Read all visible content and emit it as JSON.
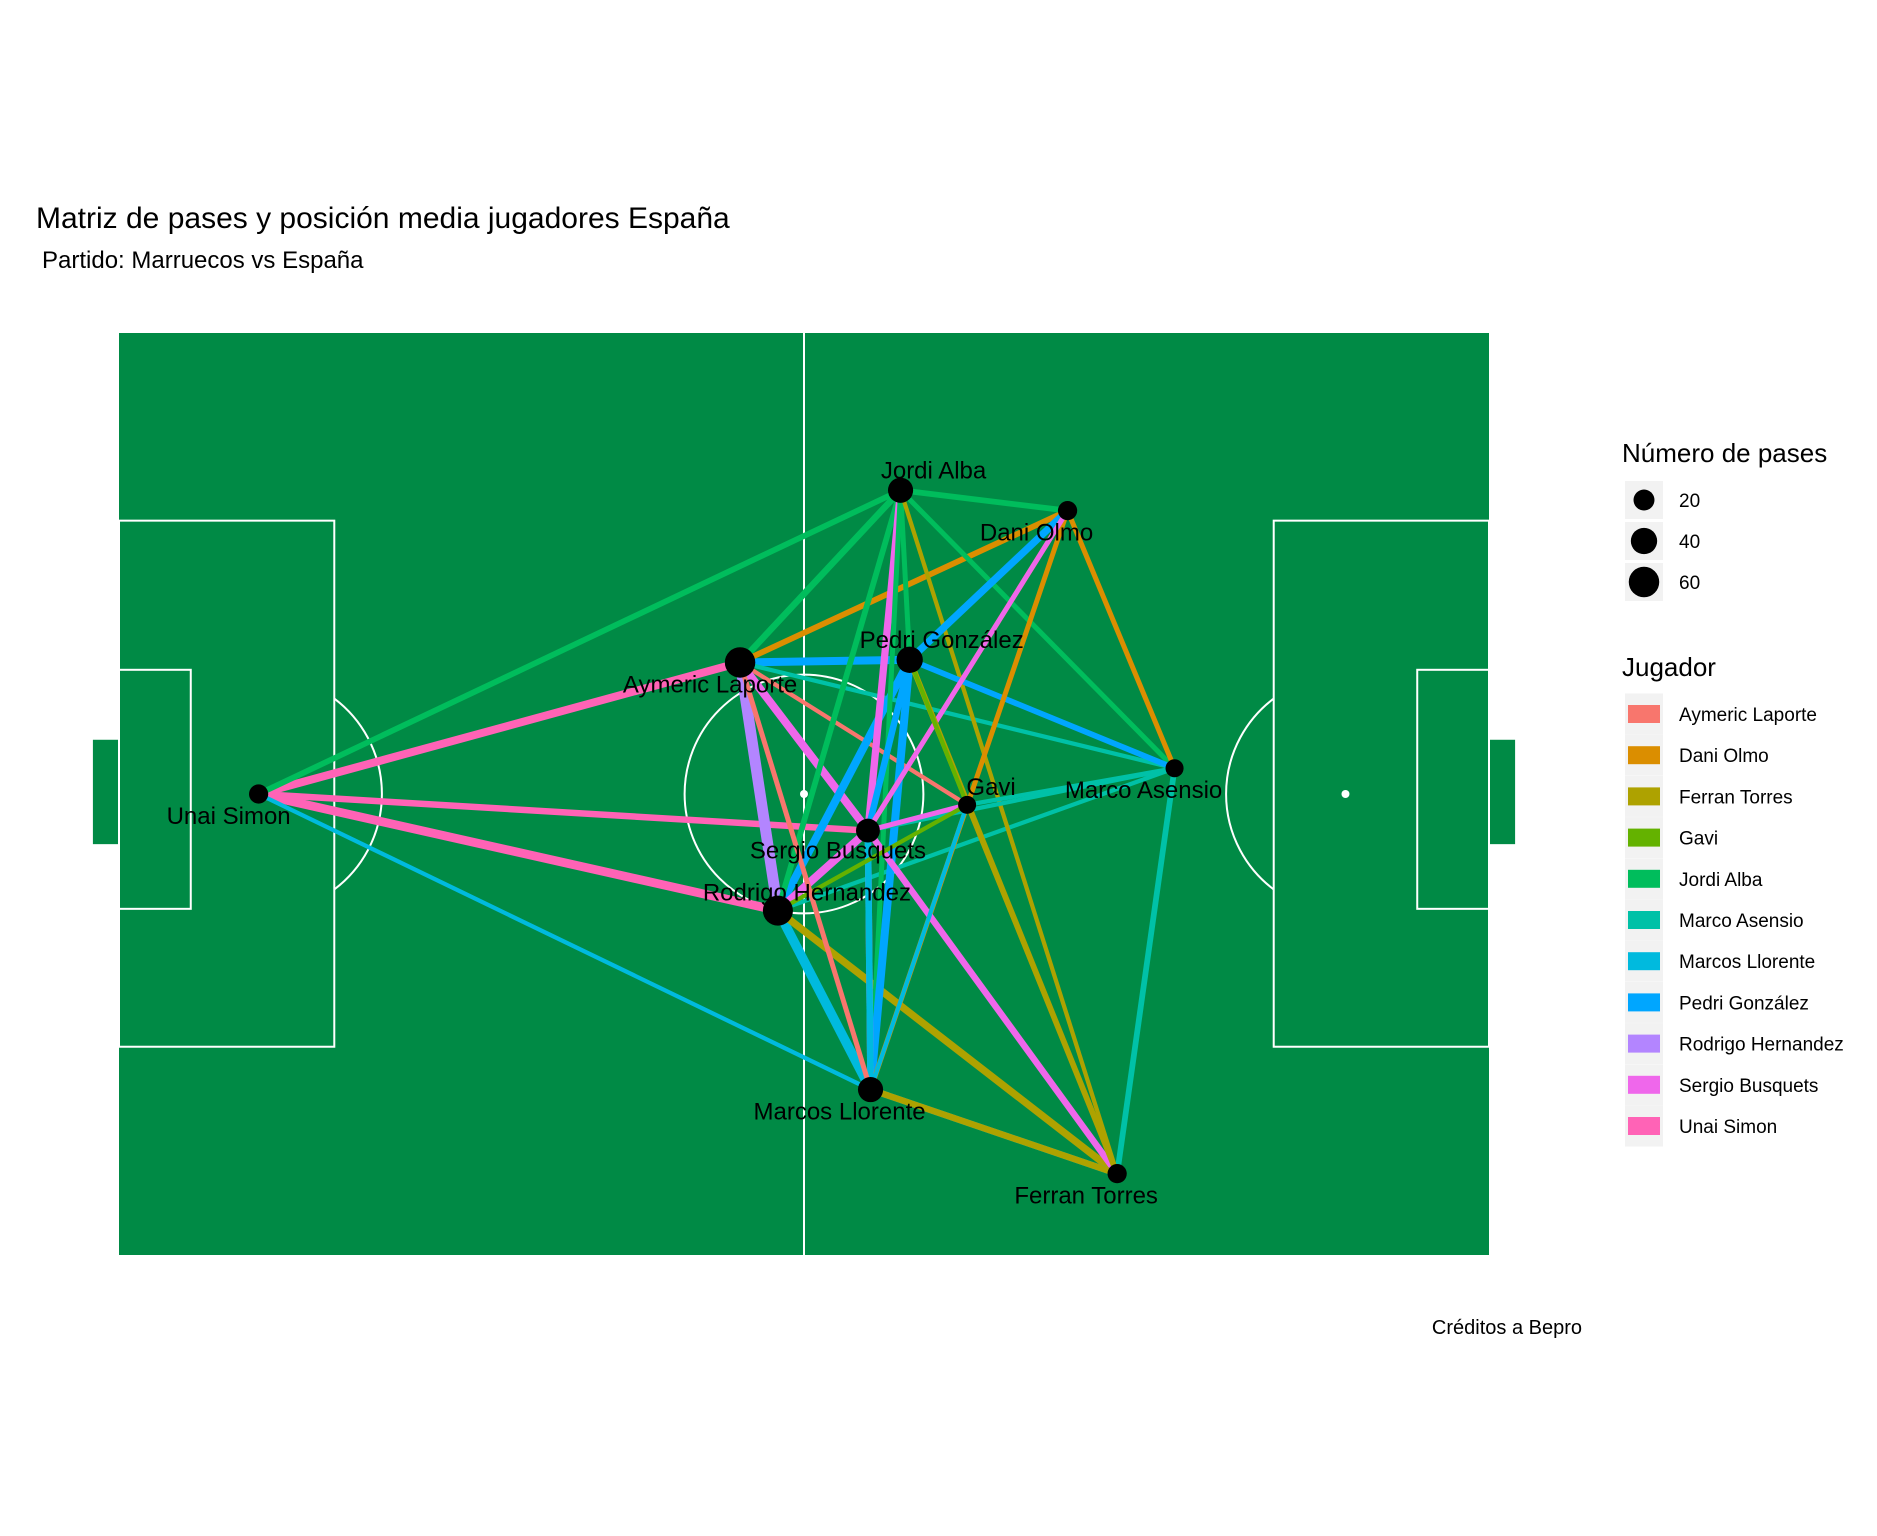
{
  "chart_data": {
    "type": "network",
    "title": "Matriz de pases y posición media jugadores España",
    "subtitle": "Partido: Marruecos vs España",
    "caption": "Créditos a Bepro",
    "pitch": {
      "length": 105,
      "width": 68,
      "color": "#008a45",
      "line_color": "#ffffff"
    },
    "size_legend": {
      "title": "Número de pases",
      "entries": [
        {
          "label": "20",
          "value": 20
        },
        {
          "label": "40",
          "value": 40
        },
        {
          "label": "60",
          "value": 60
        }
      ]
    },
    "color_legend": {
      "title": "Jugador",
      "entries": [
        {
          "name": "Aymeric Laporte",
          "color": "#f8766d"
        },
        {
          "name": "Dani Olmo",
          "color": "#db8e00"
        },
        {
          "name": "Ferran Torres",
          "color": "#aea200"
        },
        {
          "name": "Gavi",
          "color": "#64b200"
        },
        {
          "name": "Jordi Alba",
          "color": "#00bd5c"
        },
        {
          "name": "Marco Asensio",
          "color": "#00c1a7"
        },
        {
          "name": "Marcos Llorente",
          "color": "#00bade"
        },
        {
          "name": "Pedri González",
          "color": "#00a6ff"
        },
        {
          "name": "Rodrigo Hernandez",
          "color": "#b385ff"
        },
        {
          "name": "Sergio Busquets",
          "color": "#ef67eb"
        },
        {
          "name": "Unai Simon",
          "color": "#ff63b6"
        }
      ]
    },
    "players": [
      {
        "name": "Unai Simon",
        "x": 10.7,
        "y": 34.0,
        "passes": 15
      },
      {
        "name": "Aymeric Laporte",
        "x": 47.6,
        "y": 43.7,
        "passes": 60
      },
      {
        "name": "Rodrigo Hernandez",
        "x": 50.5,
        "y": 25.4,
        "passes": 58
      },
      {
        "name": "Sergio Busquets",
        "x": 57.4,
        "y": 31.3,
        "passes": 30
      },
      {
        "name": "Pedri González",
        "x": 60.6,
        "y": 43.9,
        "passes": 40
      },
      {
        "name": "Jordi Alba",
        "x": 59.9,
        "y": 56.4,
        "passes": 35
      },
      {
        "name": "Dani Olmo",
        "x": 72.7,
        "y": 54.9,
        "passes": 15
      },
      {
        "name": "Gavi",
        "x": 65.0,
        "y": 33.2,
        "passes": 12
      },
      {
        "name": "Marco Asensio",
        "x": 80.9,
        "y": 35.9,
        "passes": 12
      },
      {
        "name": "Marcos Llorente",
        "x": 57.6,
        "y": 12.2,
        "passes": 35
      },
      {
        "name": "Ferran Torres",
        "x": 76.5,
        "y": 6.0,
        "passes": 15
      }
    ],
    "passes": [
      {
        "from": "Unai Simon",
        "to": "Aymeric Laporte",
        "count": 8
      },
      {
        "from": "Unai Simon",
        "to": "Rodrigo Hernandez",
        "count": 9
      },
      {
        "from": "Unai Simon",
        "to": "Sergio Busquets",
        "count": 6
      },
      {
        "from": "Jordi Alba",
        "to": "Unai Simon",
        "count": 5
      },
      {
        "from": "Marcos Llorente",
        "to": "Unai Simon",
        "count": 3
      },
      {
        "from": "Aymeric Laporte",
        "to": "Jordi Alba",
        "count": 3
      },
      {
        "from": "Aymeric Laporte",
        "to": "Gavi",
        "count": 3
      },
      {
        "from": "Aymeric Laporte",
        "to": "Pedri González",
        "count": 3
      },
      {
        "from": "Jordi Alba",
        "to": "Aymeric Laporte",
        "count": 6
      },
      {
        "from": "Pedri González",
        "to": "Aymeric Laporte",
        "count": 8
      },
      {
        "from": "Dani Olmo",
        "to": "Aymeric Laporte",
        "count": 5
      },
      {
        "from": "Sergio Busquets",
        "to": "Aymeric Laporte",
        "count": 8
      },
      {
        "from": "Rodrigo Hernandez",
        "to": "Aymeric Laporte",
        "count": 12
      },
      {
        "from": "Marco Asensio",
        "to": "Aymeric Laporte",
        "count": 3
      },
      {
        "from": "Marcos Llorente",
        "to": "Rodrigo Hernandez",
        "count": 10
      },
      {
        "from": "Ferran Torres",
        "to": "Rodrigo Hernandez",
        "count": 7
      },
      {
        "from": "Pedri González",
        "to": "Rodrigo Hernandez",
        "count": 8
      },
      {
        "from": "Jordi Alba",
        "to": "Rodrigo Hernandez",
        "count": 5
      },
      {
        "from": "Sergio Busquets",
        "to": "Rodrigo Hernandez",
        "count": 8
      },
      {
        "from": "Marco Asensio",
        "to": "Rodrigo Hernandez",
        "count": 3
      },
      {
        "from": "Sergio Busquets",
        "to": "Jordi Alba",
        "count": 7
      },
      {
        "from": "Jordi Alba",
        "to": "Dani Olmo",
        "count": 5
      },
      {
        "from": "Jordi Alba",
        "to": "Marco Asensio",
        "count": 4
      },
      {
        "from": "Jordi Alba",
        "to": "Marcos Llorente",
        "count": 4
      },
      {
        "from": "Jordi Alba",
        "to": "Pedri González",
        "count": 4
      },
      {
        "from": "Ferran Torres",
        "to": "Jordi Alba",
        "count": 3
      },
      {
        "from": "Pedri González",
        "to": "Dani Olmo",
        "count": 7
      },
      {
        "from": "Pedri González",
        "to": "Marco Asensio",
        "count": 5
      },
      {
        "from": "Pedri González",
        "to": "Marcos Llorente",
        "count": 8
      },
      {
        "from": "Pedri González",
        "to": "Sergio Busquets",
        "count": 6
      },
      {
        "from": "Dani Olmo",
        "to": "Marcos Llorente",
        "count": 4
      },
      {
        "from": "Dani Olmo",
        "to": "Sergio Busquets",
        "count": 4
      },
      {
        "from": "Sergio Busquets",
        "to": "Dani Olmo",
        "count": 4
      },
      {
        "from": "Dani Olmo",
        "to": "Marco Asensio",
        "count": 4
      },
      {
        "from": "Marco Asensio",
        "to": "Ferran Torres",
        "count": 5
      },
      {
        "from": "Marco Asensio",
        "to": "Sergio Busquets",
        "count": 3
      },
      {
        "from": "Marco Asensio",
        "to": "Gavi",
        "count": 3
      },
      {
        "from": "Sergio Busquets",
        "to": "Gavi",
        "count": 4
      },
      {
        "from": "Sergio Busquets",
        "to": "Marcos Llorente",
        "count": 6
      },
      {
        "from": "Sergio Busquets",
        "to": "Ferran Torres",
        "count": 6
      },
      {
        "from": "Marcos Llorente",
        "to": "Sergio Busquets",
        "count": 6
      },
      {
        "from": "Marcos Llorente",
        "to": "Ferran Torres",
        "count": 6
      },
      {
        "from": "Marcos Llorente",
        "to": "Gavi",
        "count": 3
      },
      {
        "from": "Ferran Torres",
        "to": "Marcos Llorente",
        "count": 6
      },
      {
        "from": "Ferran Torres",
        "to": "Pedri González",
        "count": 5
      },
      {
        "from": "Ferran Torres",
        "to": "Gavi",
        "count": 3
      },
      {
        "from": "Gavi",
        "to": "Pedri González",
        "count": 3
      },
      {
        "from": "Gavi",
        "to": "Rodrigo Hernandez",
        "count": 3
      },
      {
        "from": "Aymeric Laporte",
        "to": "Marcos Llorente",
        "count": 4
      }
    ]
  }
}
